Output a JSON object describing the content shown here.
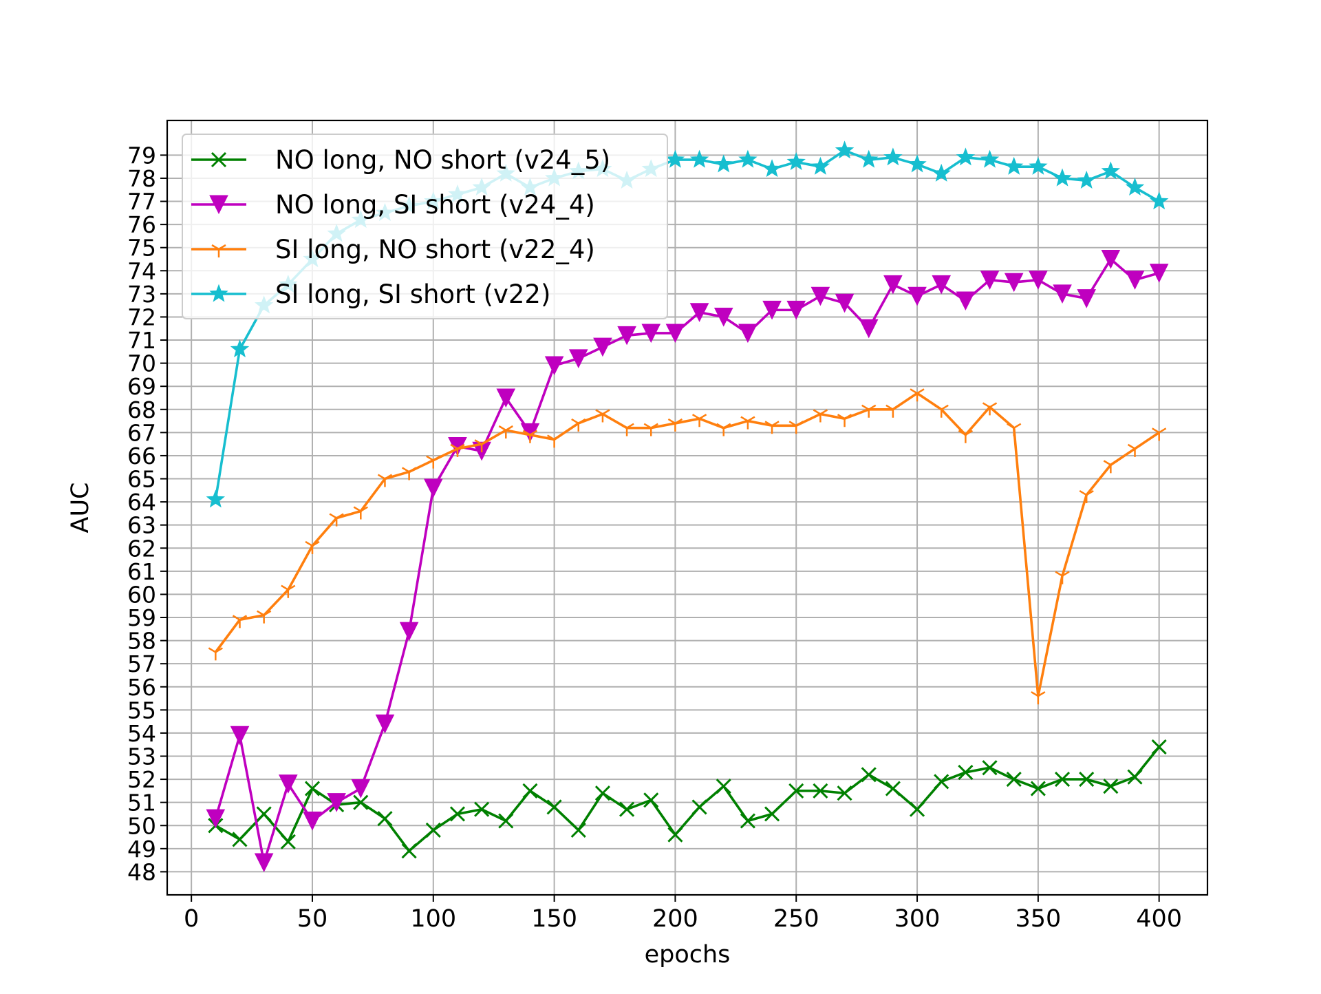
{
  "chart_data": {
    "type": "line",
    "xlabel": "epochs",
    "ylabel": "AUC",
    "xlim": [
      -10,
      420
    ],
    "ylim": [
      47,
      80.5
    ],
    "xticks": [
      0,
      50,
      100,
      150,
      200,
      250,
      300,
      350,
      400
    ],
    "yticks": [
      48,
      49,
      50,
      51,
      52,
      53,
      54,
      55,
      56,
      57,
      58,
      59,
      60,
      61,
      62,
      63,
      64,
      65,
      66,
      67,
      68,
      69,
      70,
      71,
      72,
      73,
      74,
      75,
      76,
      77,
      78,
      79
    ],
    "grid": true,
    "legend_position": "upper-left",
    "x": [
      10,
      20,
      30,
      40,
      50,
      60,
      70,
      80,
      90,
      100,
      110,
      120,
      130,
      140,
      150,
      160,
      170,
      180,
      190,
      200,
      210,
      220,
      230,
      240,
      250,
      260,
      270,
      280,
      290,
      300,
      310,
      320,
      330,
      340,
      350,
      360,
      370,
      380,
      390,
      400
    ],
    "series": [
      {
        "name": "NO long, NO short (v24_5)",
        "color": "#008000",
        "marker": "x",
        "values": [
          50.0,
          49.4,
          50.5,
          49.3,
          51.6,
          50.9,
          51.0,
          50.3,
          48.9,
          49.8,
          50.5,
          50.7,
          50.2,
          51.5,
          50.8,
          49.8,
          51.4,
          50.7,
          51.1,
          49.6,
          50.8,
          51.7,
          50.2,
          50.5,
          51.5,
          51.5,
          51.4,
          52.2,
          51.6,
          50.7,
          51.9,
          52.3,
          52.5,
          52.0,
          51.6,
          52.0,
          52.0,
          51.7,
          52.1,
          53.4
        ]
      },
      {
        "name": "NO long, SI short (v24_4)",
        "color": "#bf00bf",
        "marker": "v",
        "values": [
          50.3,
          53.9,
          48.4,
          51.8,
          50.2,
          51.0,
          51.6,
          54.4,
          58.4,
          64.6,
          66.4,
          66.2,
          68.5,
          67.0,
          69.9,
          70.2,
          70.7,
          71.2,
          71.3,
          71.3,
          72.2,
          72.0,
          71.3,
          72.3,
          72.3,
          72.9,
          72.6,
          71.5,
          73.4,
          72.9,
          73.4,
          72.7,
          73.6,
          73.5,
          73.6,
          73.0,
          72.8,
          74.5,
          73.6,
          73.9
        ]
      },
      {
        "name": "SI long, NO short (v22_4)",
        "color": "#ff7f0e",
        "marker": "tri_down",
        "values": [
          57.5,
          58.9,
          59.1,
          60.2,
          62.1,
          63.3,
          63.6,
          65.0,
          65.3,
          65.8,
          66.3,
          66.5,
          67.1,
          66.9,
          66.7,
          67.4,
          67.8,
          67.2,
          67.2,
          67.4,
          67.6,
          67.2,
          67.5,
          67.3,
          67.3,
          67.8,
          67.6,
          68.0,
          68.0,
          68.7,
          68.0,
          66.9,
          68.1,
          67.2,
          55.6,
          60.8,
          64.3,
          65.6,
          66.3,
          67.0
        ]
      },
      {
        "name": "SI long, SI short (v22)",
        "color": "#17becf",
        "marker": "star",
        "values": [
          64.1,
          70.6,
          72.5,
          73.4,
          74.5,
          75.6,
          76.2,
          76.5,
          76.8,
          77.0,
          77.3,
          77.6,
          78.2,
          77.6,
          78.0,
          78.3,
          78.4,
          77.9,
          78.4,
          78.8,
          78.8,
          78.6,
          78.8,
          78.4,
          78.7,
          78.5,
          79.2,
          78.8,
          78.9,
          78.6,
          78.2,
          78.9,
          78.8,
          78.5,
          78.5,
          78.0,
          77.9,
          78.3,
          77.6,
          77.0
        ]
      }
    ]
  }
}
